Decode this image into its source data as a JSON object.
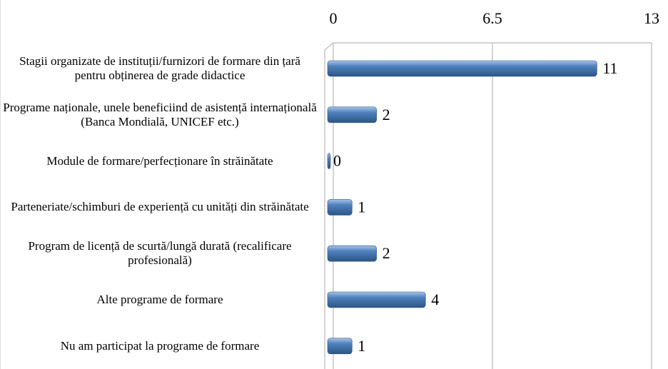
{
  "chart_data": {
    "type": "bar",
    "orientation": "horizontal",
    "categories": [
      "Stagii organizate de instituții/furnizori de formare din țară pentru obținerea de grade didactice",
      "Programe naționale, unele beneficiind de asistență internațională (Banca Mondială, UNICEF etc.)",
      "Module de formare/perfecționare în străinătate",
      "Parteneriate/schimburi de experiență cu unități din străinătate",
      "Program de licență de scurtă/lungă durată (recalificare profesională)",
      "Alte programe de formare",
      "Nu am participat la programe de formare"
    ],
    "values": [
      11,
      2,
      0,
      1,
      2,
      4,
      1
    ],
    "color": "#4f81bd",
    "xlim": [
      0,
      13
    ],
    "xticks": [
      0,
      6.5,
      13
    ],
    "grid": true
  }
}
